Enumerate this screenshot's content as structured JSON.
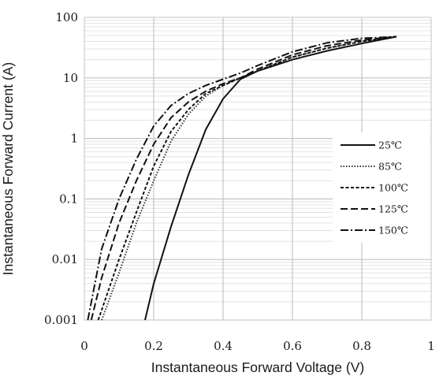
{
  "chart_data": {
    "type": "line",
    "title": "",
    "xlabel": "Instantaneous Forward Voltage (V)",
    "ylabel": "Instantaneous Forward Current (A)",
    "xlim": [
      0,
      1
    ],
    "ylim": [
      0.001,
      100
    ],
    "yscale": "log",
    "grid": true,
    "legend": "right",
    "xticks": [
      {
        "value": 0,
        "label": "0"
      },
      {
        "value": 0.2,
        "label": "0.2"
      },
      {
        "value": 0.4,
        "label": "0.4"
      },
      {
        "value": 0.6,
        "label": "0.6"
      },
      {
        "value": 0.8,
        "label": "0.8"
      },
      {
        "value": 1,
        "label": "1"
      }
    ],
    "yticks": [
      {
        "value": 0.001,
        "label": "0.001"
      },
      {
        "value": 0.01,
        "label": "0.01"
      },
      {
        "value": 0.1,
        "label": "0.1"
      },
      {
        "value": 1,
        "label": "1"
      },
      {
        "value": 10,
        "label": "10"
      },
      {
        "value": 100,
        "label": "100"
      }
    ],
    "series": [
      {
        "name": "25℃",
        "dash": "solid",
        "color": "#111111",
        "x": [
          0.175,
          0.2,
          0.25,
          0.3,
          0.35,
          0.4,
          0.45,
          0.5,
          0.6,
          0.7,
          0.8,
          0.9
        ],
        "y": [
          0.001,
          0.004,
          0.035,
          0.25,
          1.4,
          4.5,
          9.5,
          13,
          20,
          28,
          37,
          48
        ]
      },
      {
        "name": "85℃",
        "dash": "dot",
        "color": "#333333",
        "x": [
          0.05,
          0.1,
          0.15,
          0.2,
          0.25,
          0.3,
          0.35,
          0.4,
          0.45,
          0.5,
          0.6,
          0.7,
          0.8,
          0.9
        ],
        "y": [
          0.001,
          0.006,
          0.04,
          0.2,
          0.9,
          2.5,
          5,
          7.5,
          10,
          13,
          22,
          31,
          40,
          48
        ]
      },
      {
        "name": "100℃",
        "dash": "short-dash",
        "color": "#111111",
        "x": [
          0.04,
          0.1,
          0.15,
          0.2,
          0.25,
          0.3,
          0.35,
          0.4,
          0.45,
          0.5,
          0.6,
          0.7,
          0.8,
          0.9
        ],
        "y": [
          0.001,
          0.01,
          0.06,
          0.35,
          1.3,
          3,
          5.5,
          7.5,
          10,
          13,
          22,
          31,
          40,
          48
        ]
      },
      {
        "name": "125℃",
        "dash": "long-dash",
        "color": "#111111",
        "x": [
          0.02,
          0.05,
          0.1,
          0.15,
          0.2,
          0.25,
          0.3,
          0.35,
          0.4,
          0.45,
          0.5,
          0.6,
          0.7,
          0.8,
          0.9
        ],
        "y": [
          0.001,
          0.005,
          0.04,
          0.2,
          0.8,
          2.2,
          4,
          6,
          8,
          10,
          14,
          24,
          34,
          42,
          48
        ]
      },
      {
        "name": "150℃",
        "dash": "dash-dot",
        "color": "#111111",
        "x": [
          0.01,
          0.05,
          0.1,
          0.15,
          0.2,
          0.25,
          0.3,
          0.35,
          0.4,
          0.45,
          0.5,
          0.6,
          0.7,
          0.8,
          0.9
        ],
        "y": [
          0.001,
          0.015,
          0.1,
          0.45,
          1.6,
          3.5,
          5.5,
          7.5,
          9.5,
          12,
          16,
          27,
          38,
          45,
          48
        ]
      }
    ]
  }
}
